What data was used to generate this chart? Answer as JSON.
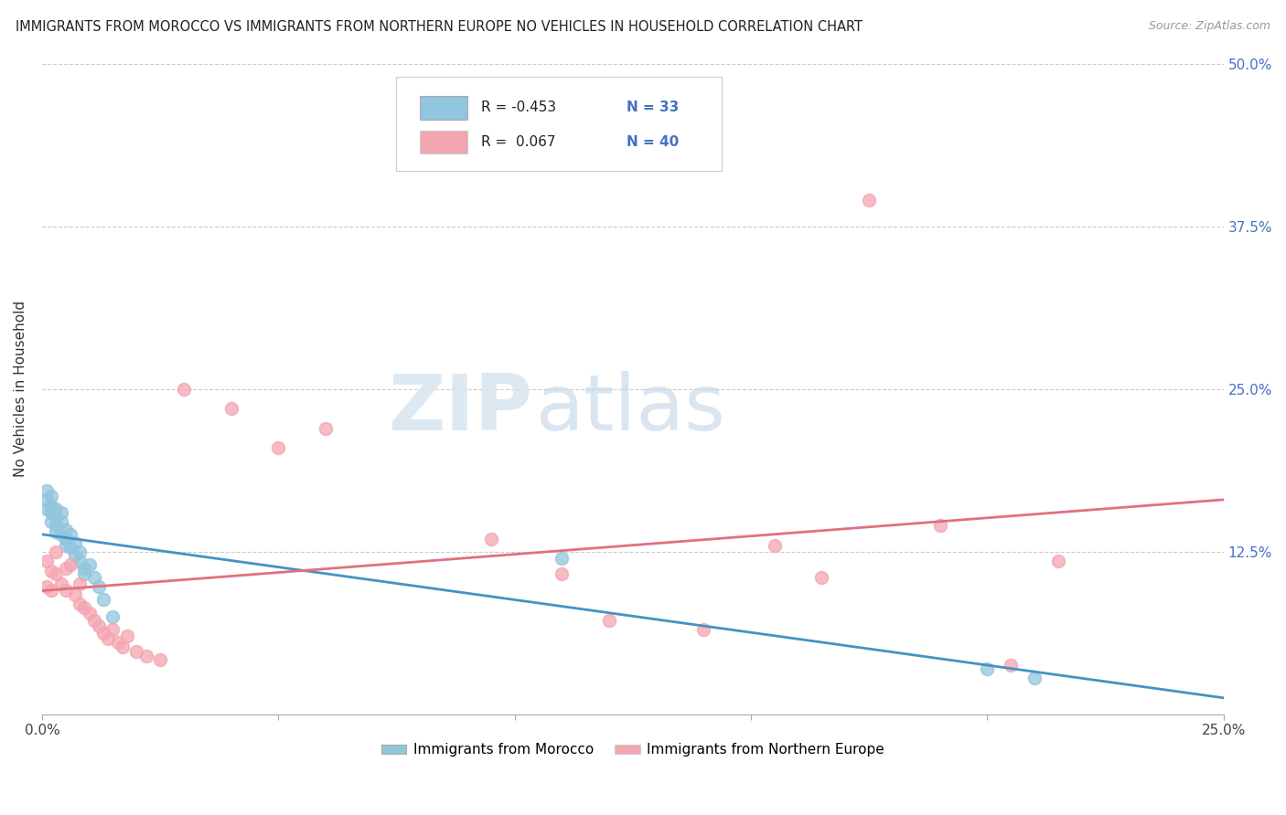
{
  "title": "IMMIGRANTS FROM MOROCCO VS IMMIGRANTS FROM NORTHERN EUROPE NO VEHICLES IN HOUSEHOLD CORRELATION CHART",
  "source": "Source: ZipAtlas.com",
  "ylabel": "No Vehicles in Household",
  "xlim": [
    0.0,
    0.25
  ],
  "ylim": [
    0.0,
    0.5
  ],
  "legend1_label": "Immigrants from Morocco",
  "legend2_label": "Immigrants from Northern Europe",
  "r1": -0.453,
  "n1": 33,
  "r2": 0.067,
  "n2": 40,
  "color1": "#92c5de",
  "color2": "#f4a5b0",
  "trendcolor1": "#4393c3",
  "trendcolor2": "#e07080",
  "watermark_zip": "ZIP",
  "watermark_atlas": "atlas",
  "morocco_x": [
    0.001,
    0.001,
    0.001,
    0.002,
    0.002,
    0.002,
    0.002,
    0.003,
    0.003,
    0.003,
    0.003,
    0.004,
    0.004,
    0.004,
    0.005,
    0.005,
    0.005,
    0.006,
    0.006,
    0.007,
    0.007,
    0.008,
    0.008,
    0.009,
    0.009,
    0.01,
    0.011,
    0.012,
    0.013,
    0.015,
    0.11,
    0.2,
    0.21
  ],
  "morocco_y": [
    0.165,
    0.158,
    0.172,
    0.16,
    0.155,
    0.148,
    0.168,
    0.152,
    0.145,
    0.158,
    0.14,
    0.148,
    0.138,
    0.155,
    0.135,
    0.142,
    0.13,
    0.128,
    0.138,
    0.122,
    0.132,
    0.118,
    0.125,
    0.112,
    0.108,
    0.115,
    0.105,
    0.098,
    0.088,
    0.075,
    0.12,
    0.035,
    0.028
  ],
  "northern_x": [
    0.001,
    0.001,
    0.002,
    0.002,
    0.003,
    0.003,
    0.004,
    0.005,
    0.005,
    0.006,
    0.007,
    0.008,
    0.008,
    0.009,
    0.01,
    0.011,
    0.012,
    0.013,
    0.014,
    0.015,
    0.016,
    0.017,
    0.018,
    0.02,
    0.022,
    0.025,
    0.03,
    0.04,
    0.05,
    0.06,
    0.095,
    0.11,
    0.12,
    0.14,
    0.155,
    0.165,
    0.175,
    0.19,
    0.205,
    0.215
  ],
  "northern_y": [
    0.118,
    0.098,
    0.11,
    0.095,
    0.125,
    0.108,
    0.1,
    0.112,
    0.095,
    0.115,
    0.092,
    0.085,
    0.1,
    0.082,
    0.078,
    0.072,
    0.068,
    0.062,
    0.058,
    0.065,
    0.055,
    0.052,
    0.06,
    0.048,
    0.045,
    0.042,
    0.25,
    0.235,
    0.205,
    0.22,
    0.135,
    0.108,
    0.072,
    0.065,
    0.13,
    0.105,
    0.395,
    0.145,
    0.038,
    0.118
  ]
}
